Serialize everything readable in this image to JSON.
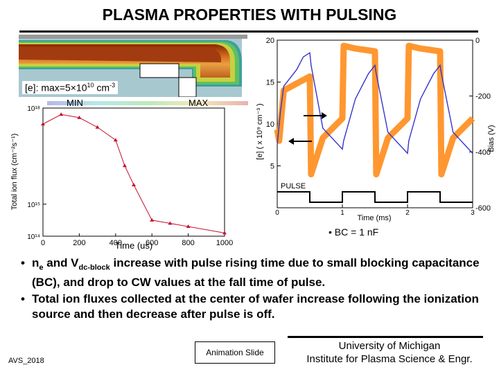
{
  "title": "PLASMA PROPERTIES WITH PULSING",
  "plasma_image": {
    "label_prefix": "[e]: max=5×10",
    "label_exponent": "10",
    "label_unit": " cm",
    "label_unit_exponent": "-3",
    "min_label": "MIN",
    "max_label": "MAX"
  },
  "bc_label": "BC = 1 nF",
  "bullets": [
    {
      "part1": "n",
      "sub1": "e",
      "part2": " and V",
      "sub2": "dc-block",
      "part3": " increase with pulse rising time due to small blocking capacitance (BC), and drop to CW values at the fall time of pulse."
    },
    {
      "text": "Total ion fluxes collected at the center of wafer increase following the ionization source and then decrease after pulse is off."
    }
  ],
  "footer": {
    "left": "AVS_2018",
    "animation": "Animation Slide",
    "university": "University of Michigan",
    "institute": "Institute for Plasma Science & Engr."
  },
  "colors": {
    "flux_line": "#c8102e",
    "density_line": "#3333cc",
    "bias_line": "#ff8c1a",
    "pulse_line": "#000000"
  },
  "chart_data": [
    {
      "type": "line",
      "title": "",
      "xlabel": "Time (us)",
      "ylabel": "Total ion flux (cm⁻²s⁻¹)",
      "xlim": [
        0,
        1000
      ],
      "ylim_log10": [
        14,
        18
      ],
      "x_ticks": [
        "0",
        "200",
        "400",
        "600",
        "800",
        "1000"
      ],
      "y_ticks": [
        "10¹⁴",
        "10¹⁵",
        "10¹⁸"
      ],
      "x": [
        0,
        100,
        200,
        300,
        400,
        450,
        500,
        600,
        700,
        800,
        1000
      ],
      "log10_values": [
        17.5,
        17.8,
        17.7,
        17.4,
        17.0,
        16.2,
        15.6,
        14.5,
        14.4,
        14.3,
        14.1
      ]
    },
    {
      "type": "line",
      "title": "",
      "xlabel": "Time (ms)",
      "ylabel_left": "[e] ( x 10⁹ cm⁻³ )",
      "ylabel_right": "Bias (V)",
      "xlim": [
        0,
        3
      ],
      "ylim_left": [
        0,
        20
      ],
      "ylim_right": [
        -600,
        0
      ],
      "x_ticks": [
        "0",
        "1",
        "2",
        "3"
      ],
      "y_ticks_left": [
        "5",
        "10",
        "15",
        "20"
      ],
      "y_ticks_right": [
        "0",
        "-200",
        "-400",
        "-600"
      ],
      "pulse_label": "PULSE",
      "series": [
        {
          "name": "Electron density",
          "axis": "left",
          "x": [
            0,
            0.05,
            0.1,
            0.2,
            0.3,
            0.4,
            0.5,
            0.52,
            0.7,
            1.0,
            1.02,
            1.2,
            1.4,
            1.5,
            1.52,
            1.7,
            2.0,
            2.02,
            2.2,
            2.4,
            2.5,
            2.52,
            2.7,
            3.0
          ],
          "values": [
            7.5,
            11.5,
            14.5,
            15.5,
            16.5,
            18.0,
            18.5,
            17.0,
            9.5,
            7.0,
            8.0,
            13.0,
            16.0,
            17.0,
            16.0,
            9.0,
            6.5,
            8.0,
            13.0,
            16.0,
            17.0,
            16.0,
            9.0,
            6.5
          ]
        },
        {
          "name": "Bias voltage",
          "axis": "right",
          "x": [
            0,
            0.03,
            0.1,
            0.5,
            0.52,
            0.7,
            1.0,
            1.02,
            1.2,
            1.5,
            1.52,
            1.7,
            2.0,
            2.02,
            2.2,
            2.5,
            2.52,
            2.7,
            3.0
          ],
          "values": [
            -320,
            -360,
            -180,
            -130,
            -480,
            -350,
            -280,
            -20,
            -30,
            -40,
            -480,
            -350,
            -280,
            -20,
            -30,
            -40,
            -480,
            -350,
            -280
          ]
        }
      ]
    }
  ]
}
